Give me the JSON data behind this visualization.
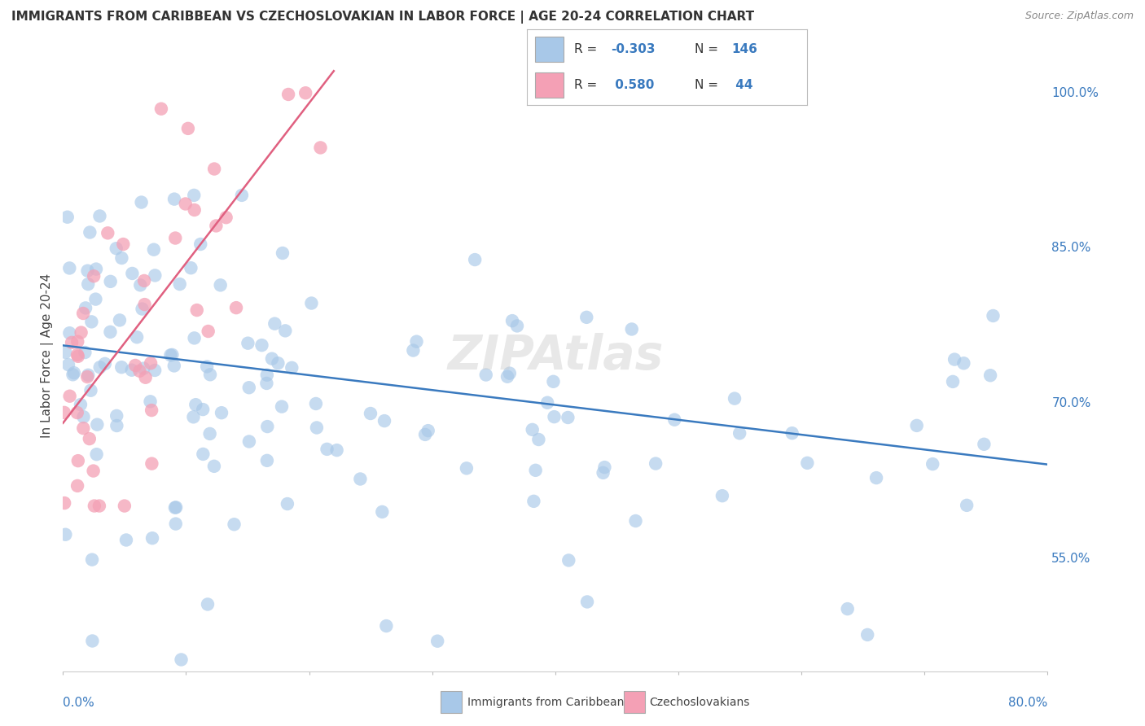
{
  "title": "IMMIGRANTS FROM CARIBBEAN VS CZECHOSLOVAKIAN IN LABOR FORCE | AGE 20-24 CORRELATION CHART",
  "source": "Source: ZipAtlas.com",
  "ylabel": "In Labor Force | Age 20-24",
  "legend_label1": "Immigrants from Caribbean",
  "legend_label2": "Czechoslovakians",
  "r1": -0.303,
  "n1": 146,
  "r2": 0.58,
  "n2": 44,
  "blue_color": "#a8c8e8",
  "pink_color": "#f4a0b5",
  "blue_line_color": "#3a7abf",
  "pink_line_color": "#e06080",
  "xmin": 0.0,
  "xmax": 80.0,
  "ymin": 44.0,
  "ymax": 105.0,
  "yticks": [
    55.0,
    70.0,
    85.0,
    100.0
  ],
  "blue_trend_x0": 0.0,
  "blue_trend_x1": 80.0,
  "blue_trend_y0": 75.5,
  "blue_trend_y1": 64.0,
  "pink_trend_x0": 0.0,
  "pink_trend_x1": 22.0,
  "pink_trend_y0": 68.0,
  "pink_trend_y1": 102.0,
  "watermark": "ZIPAtlas",
  "background_color": "#ffffff",
  "grid_color": "#dddddd"
}
